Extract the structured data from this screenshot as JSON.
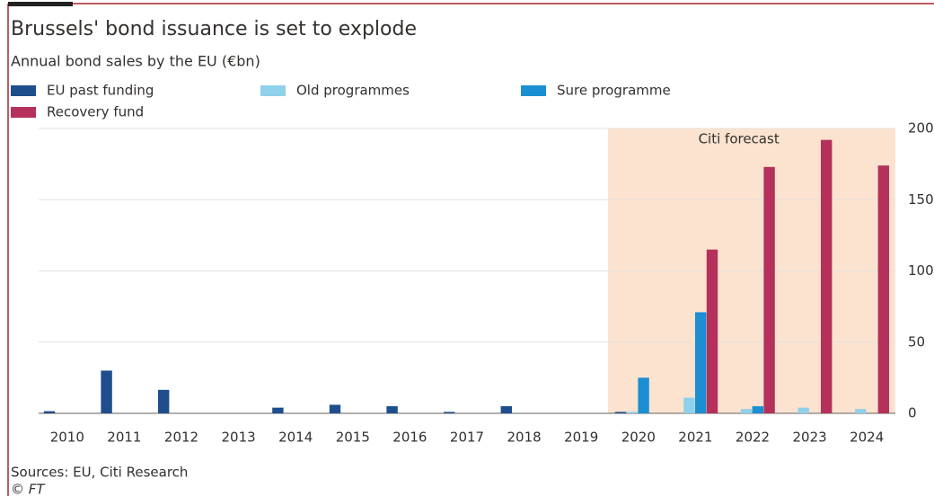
{
  "chart_data": {
    "type": "bar",
    "title": "Brussels' bond issuance is set to explode",
    "subtitle": "Annual bond sales by the EU (€bn)",
    "source": "Sources: EU, Citi Research",
    "credit": "© FT",
    "annotation": {
      "text": "Citi forecast",
      "from": "2020",
      "to": "2024"
    },
    "categories": [
      "2010",
      "2011",
      "2012",
      "2013",
      "2014",
      "2015",
      "2016",
      "2017",
      "2018",
      "2019",
      "2020",
      "2021",
      "2022",
      "2023",
      "2024"
    ],
    "series": [
      {
        "name": "EU past funding",
        "color": "#1f4e8c",
        "values": [
          1.5,
          30,
          16.5,
          0,
          4,
          6,
          5,
          1,
          5,
          0,
          1,
          0,
          0,
          0,
          0
        ]
      },
      {
        "name": "Old programmes",
        "color": "#8fd0ea",
        "values": [
          0,
          0,
          0,
          0,
          0,
          0,
          0,
          0,
          0,
          0,
          1,
          11,
          3,
          4,
          3
        ]
      },
      {
        "name": "Sure programme",
        "color": "#1b8fd2",
        "values": [
          0,
          0,
          0,
          0,
          0,
          0,
          0,
          0,
          0,
          0,
          25,
          71,
          5,
          0,
          0
        ]
      },
      {
        "name": "Recovery fund",
        "color": "#b5305a",
        "values": [
          0,
          0,
          0,
          0,
          0,
          0,
          0,
          0,
          0,
          0,
          0,
          115,
          173,
          192,
          174
        ]
      }
    ],
    "ylim": [
      0,
      200
    ],
    "yticks": [
      0,
      50,
      100,
      150,
      200
    ],
    "grid": true,
    "y_axis_side": "right"
  }
}
